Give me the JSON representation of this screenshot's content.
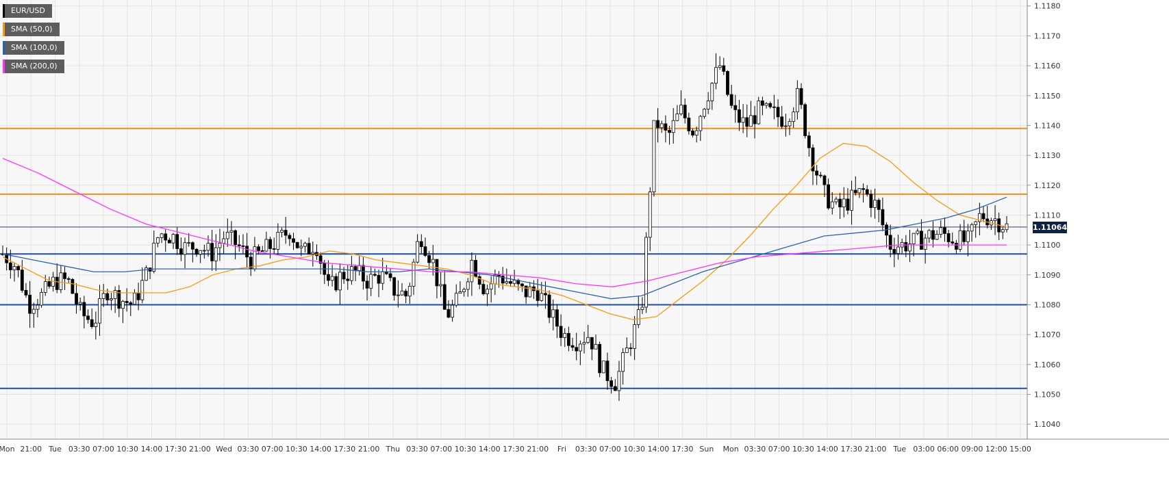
{
  "legend": [
    {
      "label": "EUR/USD",
      "color": "#000000"
    },
    {
      "label": "SMA (50,0)",
      "color": "#f39c12"
    },
    {
      "label": "SMA (100,0)",
      "color": "#2a64ad"
    },
    {
      "label": "SMA (200,0)",
      "color": "#ff33ff"
    }
  ],
  "last_price": "1.11064",
  "colors": {
    "background": "#f7f7f7",
    "grid": "#e3e3e3",
    "candle_up": "#ffffff",
    "candle_down": "#000000",
    "resistance": "#f28c1e",
    "support": "#1f4fa0",
    "sma50": "#f39c12",
    "sma100": "#2a64ad",
    "sma200": "#ff33ff"
  },
  "chart_data": {
    "type": "candlestick",
    "title": "",
    "xlabel": "",
    "ylabel": "",
    "ylim": [
      1.1035,
      1.1182
    ],
    "y_ticks": [
      "1.1180",
      "1.1170",
      "1.1160",
      "1.1150",
      "1.1140",
      "1.1130",
      "1.1120",
      "1.1110",
      "1.1100",
      "1.1090",
      "1.1080",
      "1.1070",
      "1.1060",
      "1.1050",
      "1.1040"
    ],
    "x_ticks": [
      "Mon",
      "21:00",
      "Tue",
      "03:30",
      "07:00",
      "10:30",
      "14:00",
      "17:30",
      "21:00",
      "Wed",
      "03:30",
      "07:00",
      "10:30",
      "14:00",
      "17:30",
      "21:00",
      "Thu",
      "03:30",
      "07:00",
      "10:30",
      "14:00",
      "17:30",
      "21:00",
      "Fri",
      "03:30",
      "07:00",
      "10:30",
      "14:00",
      "17:30",
      "Sun",
      "Mon",
      "03:30",
      "07:00",
      "10:30",
      "14:00",
      "17:30",
      "21:00",
      "Tue",
      "03:00",
      "06:00",
      "09:00",
      "12:00",
      "15:00"
    ],
    "horizontal_levels": [
      {
        "value": 1.1139,
        "kind": "resistance"
      },
      {
        "value": 1.1117,
        "kind": "resistance"
      },
      {
        "value": 1.1106,
        "kind": "current"
      },
      {
        "value": 1.1097,
        "kind": "support"
      },
      {
        "value": 1.108,
        "kind": "support"
      },
      {
        "value": 1.1052,
        "kind": "support"
      }
    ],
    "price_path": [
      1.1097,
      1.1093,
      1.108,
      1.1083,
      1.1088,
      1.1088,
      1.1077,
      1.1074,
      1.1085,
      1.1082,
      1.108,
      1.109,
      1.1104,
      1.1103,
      1.1099,
      1.11,
      1.1097,
      1.1103,
      1.11,
      1.1095,
      1.1098,
      1.1101,
      1.1105,
      1.1097,
      1.1101,
      1.1085,
      1.109,
      1.1091,
      1.1088,
      1.109,
      1.1085,
      1.1083,
      1.1104,
      1.1094,
      1.1076,
      1.1082,
      1.1095,
      1.1085,
      1.109,
      1.1087,
      1.1084,
      1.1085,
      1.1077,
      1.107,
      1.1068,
      1.107,
      1.1058,
      1.1054,
      1.1066,
      1.1078,
      1.1142,
      1.1136,
      1.1145,
      1.1138,
      1.115,
      1.116,
      1.1144,
      1.114,
      1.1145,
      1.1144,
      1.1142,
      1.115,
      1.113,
      1.1117,
      1.1112,
      1.1115,
      1.1118,
      1.1113,
      1.11,
      1.11,
      1.1101,
      1.1103,
      1.1104,
      1.1102,
      1.1101,
      1.111,
      1.1109,
      1.1106
    ],
    "series": [
      {
        "name": "SMA (50,0)",
        "x_start": 0,
        "values": [
          1.1096,
          1.1092,
          1.1088,
          1.1087,
          1.1085,
          1.1084,
          1.1084,
          1.1084,
          1.1086,
          1.109,
          1.1092,
          1.1093,
          1.1095,
          1.1096,
          1.1098,
          1.1097,
          1.1095,
          1.1094,
          1.1093,
          1.1092,
          1.109,
          1.1087,
          1.1086,
          1.1085,
          1.1083,
          1.108,
          1.1077,
          1.1075,
          1.1076,
          1.1082,
          1.1088,
          1.1095,
          1.1103,
          1.1112,
          1.112,
          1.1129,
          1.1134,
          1.1133,
          1.1128,
          1.1121,
          1.1115,
          1.111,
          1.1108,
          1.1106
        ]
      },
      {
        "name": "SMA (100,0)",
        "x_start": 0,
        "values": [
          1.1097,
          1.1095,
          1.1093,
          1.1091,
          1.1091,
          1.1092,
          1.1092,
          1.1092,
          1.1092,
          1.1092,
          1.1092,
          1.1092,
          1.1091,
          1.1091,
          1.1092,
          1.1091,
          1.109,
          1.1088,
          1.1086,
          1.1084,
          1.1082,
          1.1083,
          1.1087,
          1.1091,
          1.1094,
          1.1097,
          1.11,
          1.1103,
          1.1104,
          1.1105,
          1.1107,
          1.1109,
          1.1112,
          1.1116
        ]
      },
      {
        "name": "SMA (200,0)",
        "x_start": 0,
        "values": [
          1.1129,
          1.1124,
          1.1118,
          1.1112,
          1.1107,
          1.1104,
          1.1101,
          1.1098,
          1.1096,
          1.1094,
          1.1093,
          1.1092,
          1.1091,
          1.1091,
          1.109,
          1.1089,
          1.1087,
          1.1086,
          1.1088,
          1.1091,
          1.1094,
          1.1096,
          1.1097,
          1.1098,
          1.1099,
          1.11,
          1.11,
          1.11,
          1.11
        ]
      }
    ]
  }
}
